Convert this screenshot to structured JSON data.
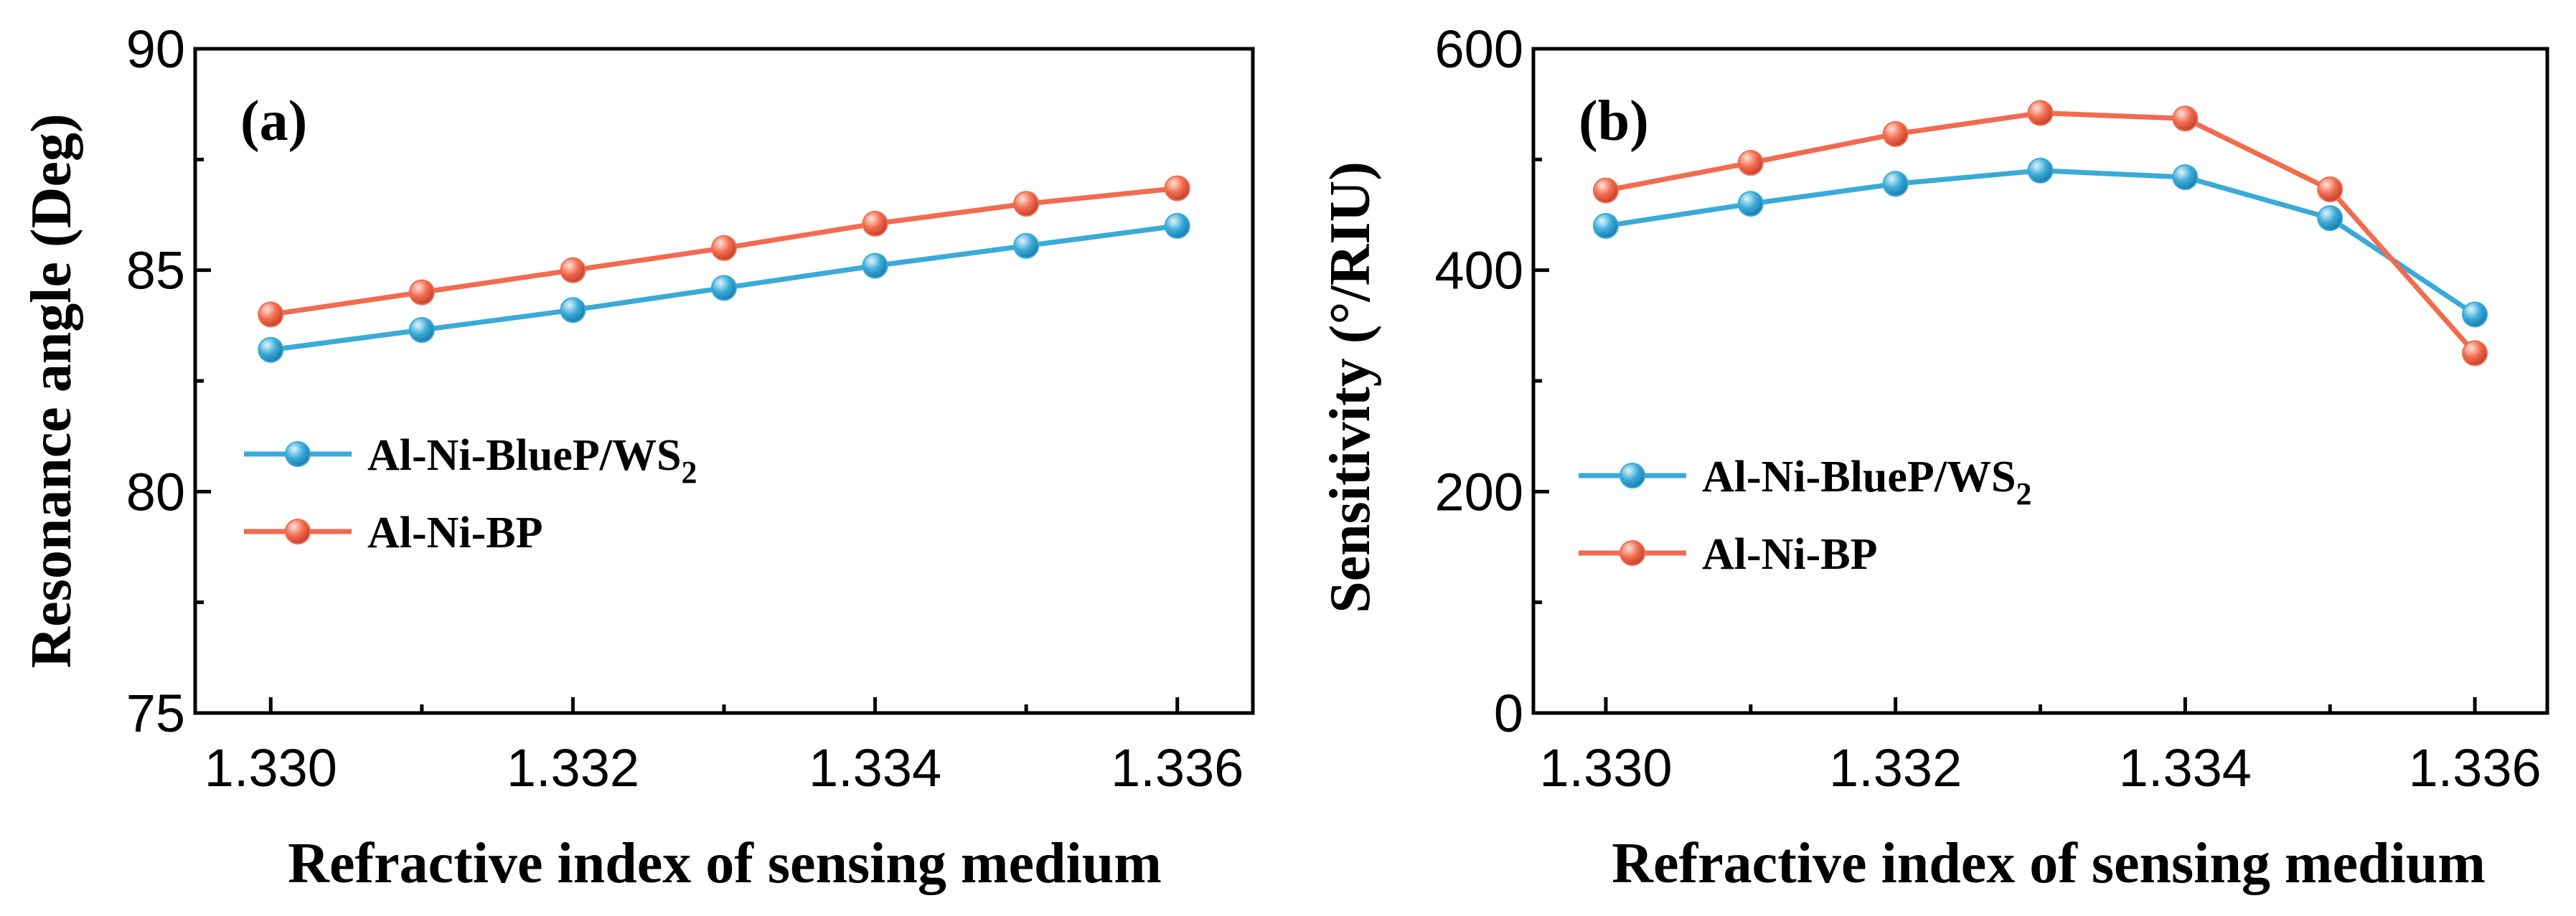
{
  "colors": {
    "blue": "#3AAAD8",
    "orange": "#F26B4F"
  },
  "chart_data": [
    {
      "type": "line",
      "panel_label": "(a)",
      "xlabel": "Refractive index of sensing medium",
      "ylabel": "Resonance angle (Deg)",
      "x": [
        1.33,
        1.331,
        1.332,
        1.333,
        1.334,
        1.335,
        1.336
      ],
      "xlim": [
        1.3295,
        1.3365
      ],
      "ylim": [
        75,
        90
      ],
      "xticks": [
        1.33,
        1.332,
        1.334,
        1.336
      ],
      "xtick_labels": [
        "1.330",
        "1.332",
        "1.334",
        "1.336"
      ],
      "yticks": [
        75,
        80,
        85,
        90
      ],
      "ytick_labels": [
        "75",
        "80",
        "85",
        "90"
      ],
      "legend": {
        "placement": "center-left",
        "entries": [
          {
            "main": "Al-Ni-BlueP/WS",
            "sub": "2"
          },
          {
            "main": "Al-Ni-BP",
            "sub": ""
          }
        ]
      },
      "series": [
        {
          "name": "Al-Ni-BlueP/WS2",
          "color": "#3AAAD8",
          "values": [
            83.2,
            83.65,
            84.1,
            84.6,
            85.1,
            85.55,
            86.0
          ]
        },
        {
          "name": "Al-Ni-BP",
          "color": "#F26B4F",
          "values": [
            84.0,
            84.5,
            85.0,
            85.5,
            86.05,
            86.5,
            86.85
          ]
        }
      ]
    },
    {
      "type": "line",
      "panel_label": "(b)",
      "xlabel": "Refractive index of sensing medium",
      "ylabel": "Sensitivity (°/RIU)",
      "x": [
        1.33,
        1.331,
        1.332,
        1.333,
        1.334,
        1.335,
        1.336
      ],
      "xlim": [
        1.3295,
        1.3365
      ],
      "ylim": [
        0,
        600
      ],
      "xticks": [
        1.33,
        1.332,
        1.334,
        1.336
      ],
      "xtick_labels": [
        "1.330",
        "1.332",
        "1.334",
        "1.336"
      ],
      "yticks": [
        0,
        200,
        400,
        600
      ],
      "ytick_labels": [
        "0",
        "200",
        "400",
        "600"
      ],
      "legend": {
        "placement": "center-left",
        "entries": [
          {
            "main": "Al-Ni-BlueP/WS",
            "sub": "2"
          },
          {
            "main": "Al-Ni-BP",
            "sub": ""
          }
        ]
      },
      "series": [
        {
          "name": "Al-Ni-BlueP/WS2",
          "color": "#3AAAD8",
          "values": [
            440,
            460,
            478,
            490,
            484,
            447,
            360
          ]
        },
        {
          "name": "Al-Ni-BP",
          "color": "#F26B4F",
          "values": [
            472,
            497,
            523,
            542,
            537,
            473,
            325
          ]
        }
      ]
    }
  ]
}
